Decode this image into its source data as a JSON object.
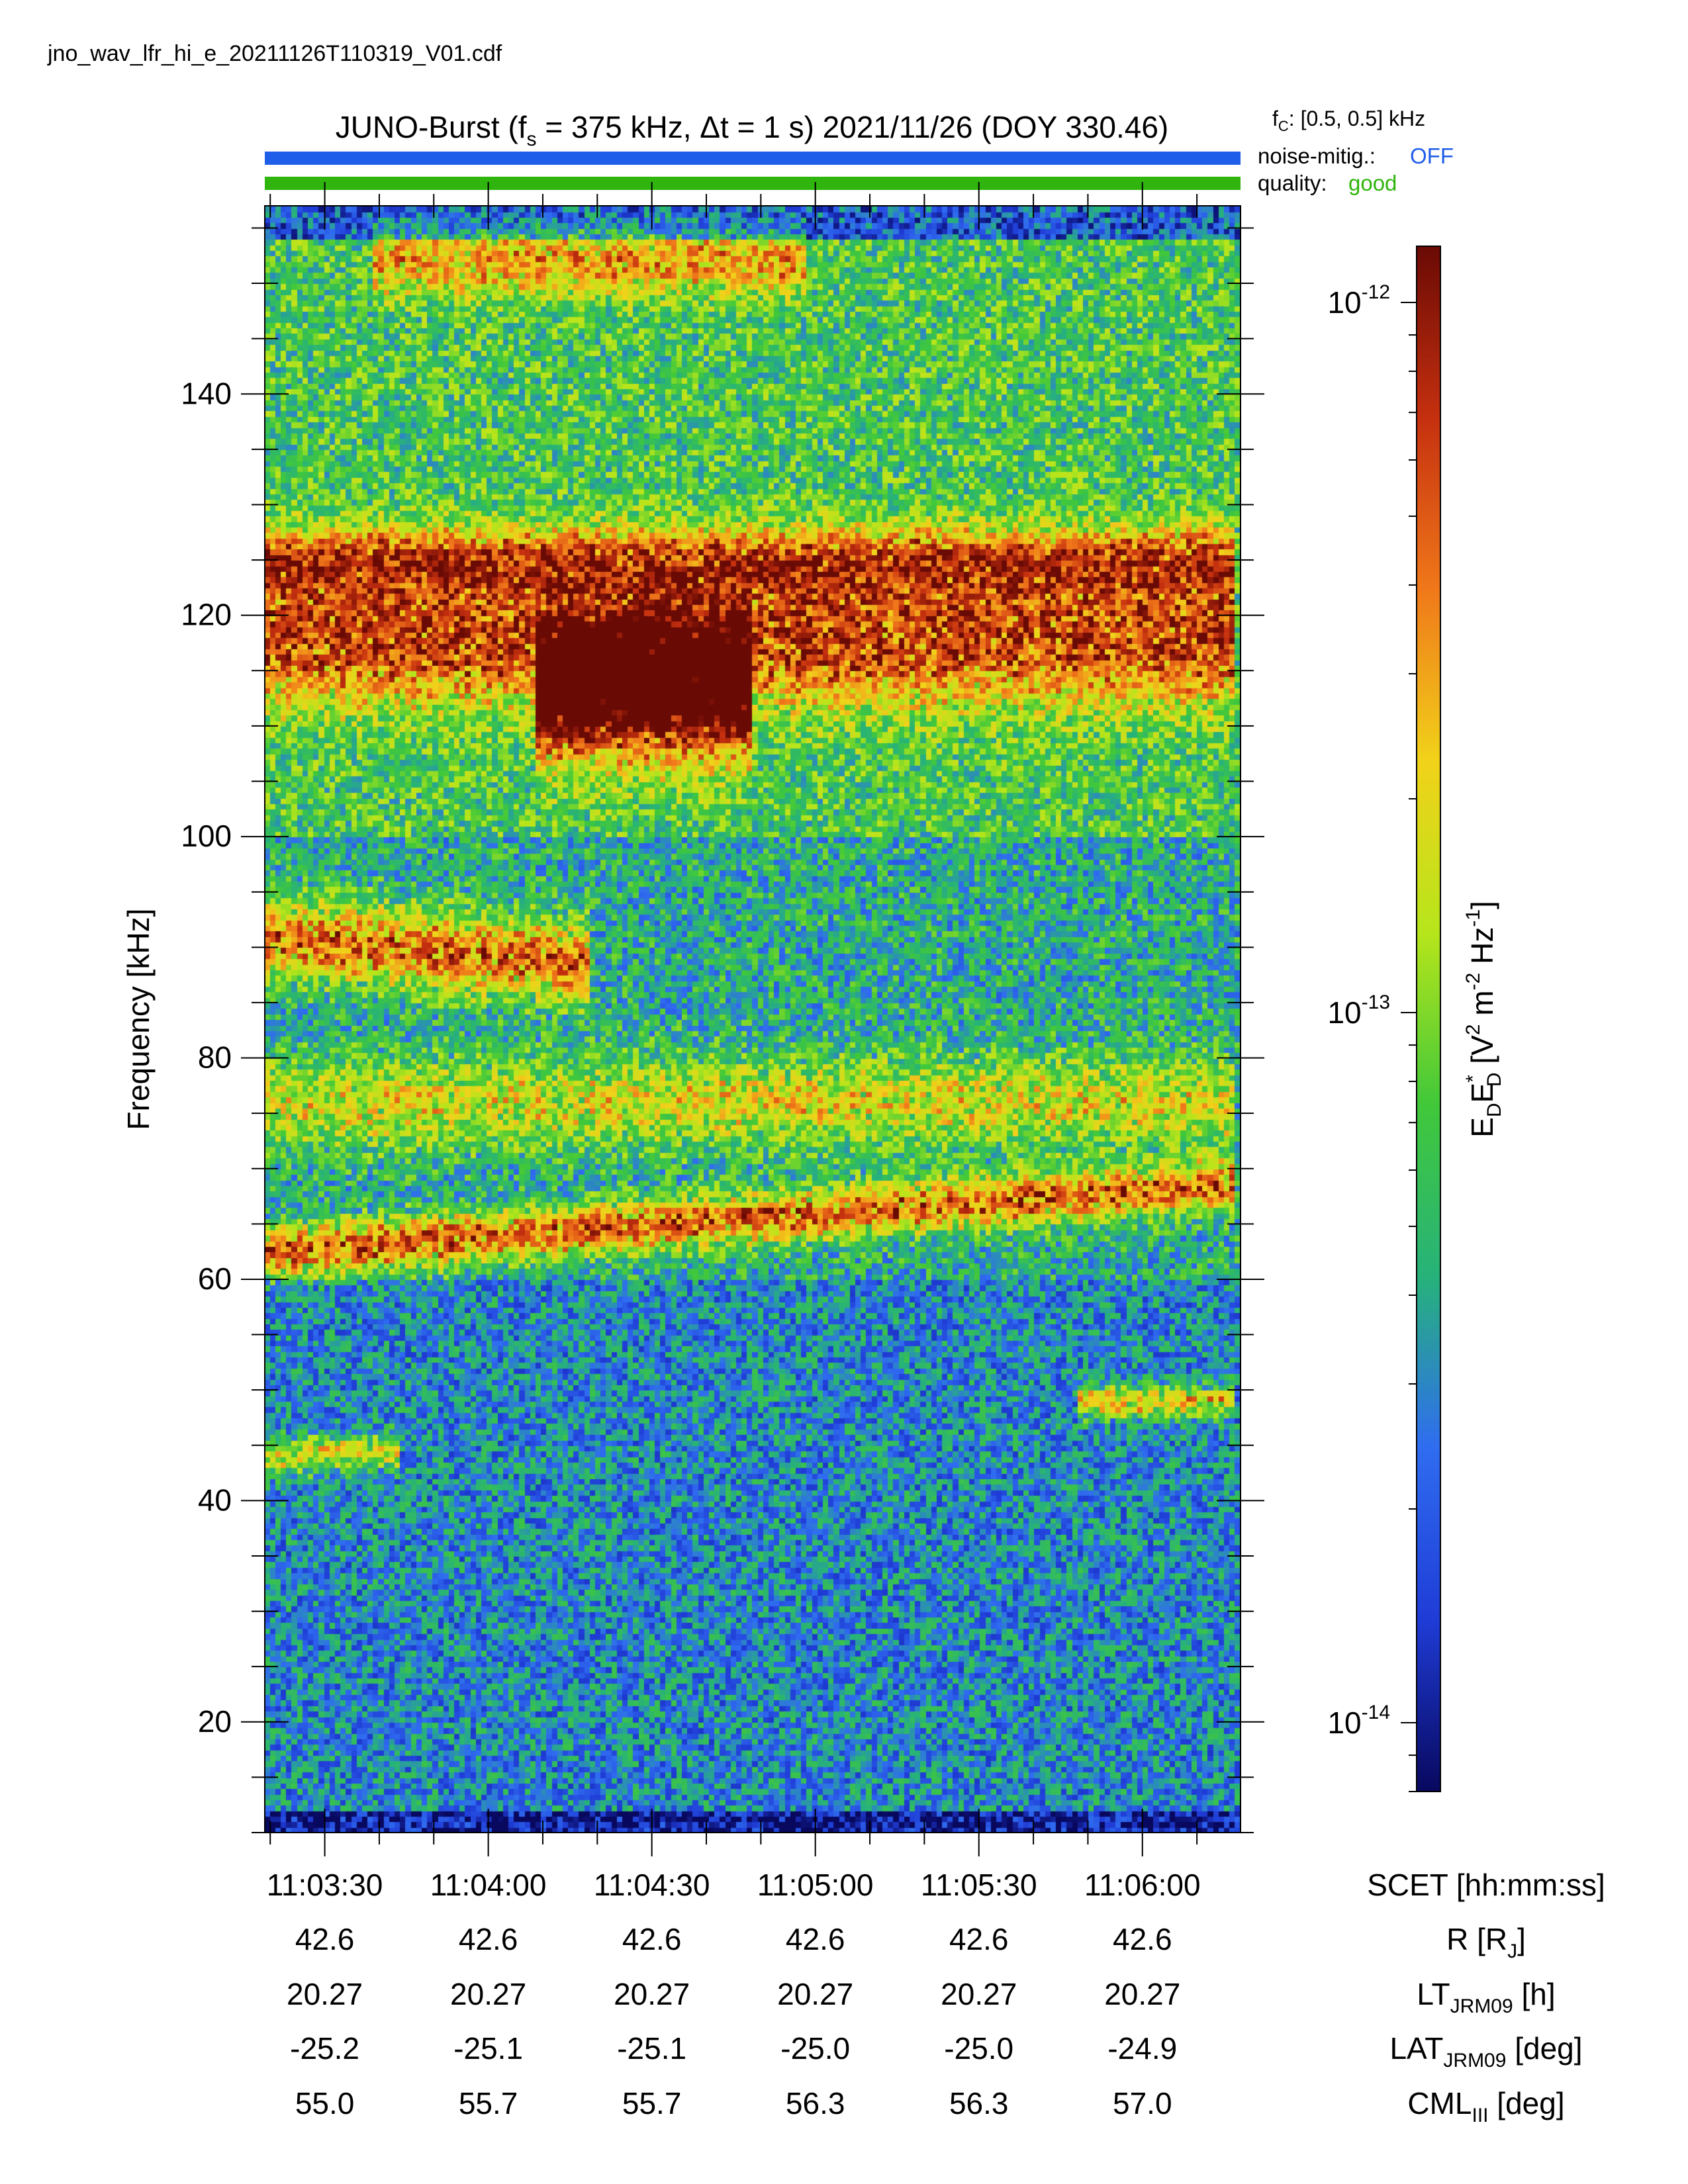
{
  "file_name": "jno_wav_lfr_hi_e_20211126T110319_V01.cdf",
  "header": {
    "title_prefix": "JUNO-Burst (f",
    "title_fs_sub": "s",
    "title_middle": " = 375 kHz, Δt = 1 s)  2021/11/26 (DOY 330.46)",
    "fc_label": "f",
    "fc_sub": "C",
    "fc_value": ": [0.5, 0.5] kHz",
    "noise_label": "noise-mitig.:",
    "noise_value": "OFF",
    "quality_label": "quality:",
    "quality_value": "good",
    "noise_bar_color": "#1f5ee8",
    "quality_bar_color": "#2fb50d",
    "noise_value_color": "#1f5ee8",
    "quality_value_color": "#2fb50d"
  },
  "chart_data": {
    "type": "heatmap",
    "xlabel": "SCET [hh:mm:ss]",
    "ylabel": "Frequency [kHz]",
    "ylim": [
      10,
      157
    ],
    "yticks": [
      20,
      40,
      60,
      80,
      100,
      120,
      140
    ],
    "xlim": [
      "11:03:19",
      "11:06:18"
    ],
    "xticks": [
      "11:03:30",
      "11:04:00",
      "11:04:30",
      "11:05:00",
      "11:05:30",
      "11:06:00"
    ],
    "colorbar": {
      "scale": "log",
      "range": [
        8e-15,
        1.2e-12
      ],
      "tick_labels": [
        {
          "mantissa": "10",
          "exponent": "-12",
          "value": 1e-12
        },
        {
          "mantissa": "10",
          "exponent": "-13",
          "value": 1e-13
        },
        {
          "mantissa": "10",
          "exponent": "-14",
          "value": 1e-14
        }
      ],
      "label_parts": [
        "E",
        "D",
        "E",
        "*",
        "D",
        " [V",
        "2",
        " m",
        "-2",
        " Hz",
        "-1",
        "]"
      ],
      "colormap": [
        "#08085e",
        "#1f3cd6",
        "#2f6cf0",
        "#27b27a",
        "#41c83a",
        "#b6e51b",
        "#f1d21a",
        "#f0781a",
        "#c5300f",
        "#6a0a05"
      ]
    },
    "emission_bands": [
      {
        "t0": 0,
        "t1": 179,
        "f": 62.5,
        "slope_khz_per_s": 0.034,
        "width": 2.2,
        "intensity": 0.62
      },
      {
        "t0": 0,
        "t1": 60,
        "f": 91,
        "slope_khz_per_s": -0.04,
        "width": 3.5,
        "intensity": 0.6
      },
      {
        "t0": 0,
        "t1": 179,
        "f": 118,
        "slope_khz_per_s": 0,
        "width": 6,
        "intensity": 0.6
      },
      {
        "t0": 0,
        "t1": 179,
        "f": 125,
        "slope_khz_per_s": 0,
        "width": 3,
        "intensity": 0.5
      },
      {
        "t0": 50,
        "t1": 90,
        "f": 113,
        "slope_khz_per_s": 0,
        "width": 6,
        "intensity": 0.85
      },
      {
        "t0": 0,
        "t1": 25,
        "f": 44,
        "slope_khz_per_s": 0.02,
        "width": 1.6,
        "intensity": 0.45
      },
      {
        "t0": 150,
        "t1": 179,
        "f": 49,
        "slope_khz_per_s": 0,
        "width": 1.5,
        "intensity": 0.5
      },
      {
        "t0": 20,
        "t1": 100,
        "f": 152,
        "slope_khz_per_s": 0,
        "width": 3,
        "intensity": 0.4
      },
      {
        "t0": 0,
        "t1": 179,
        "f": 76,
        "slope_khz_per_s": 0,
        "width": 4,
        "intensity": 0.35
      }
    ]
  },
  "ephemeris": {
    "rows": [
      {
        "label_main": "SCET [hh:mm:ss]",
        "label_sub": "",
        "label_tail": "",
        "values": [
          "11:03:30",
          "11:04:00",
          "11:04:30",
          "11:05:00",
          "11:05:30",
          "11:06:00"
        ]
      },
      {
        "label_main": "R [R",
        "label_sub": "J",
        "label_tail": "]",
        "values": [
          "42.6",
          "42.6",
          "42.6",
          "42.6",
          "42.6",
          "42.6"
        ]
      },
      {
        "label_main": "LT",
        "label_sub": "JRM09",
        "label_tail": " [h]",
        "values": [
          "20.27",
          "20.27",
          "20.27",
          "20.27",
          "20.27",
          "20.27"
        ]
      },
      {
        "label_main": "LAT",
        "label_sub": "JRM09",
        "label_tail": " [deg]",
        "values": [
          "-25.2",
          "-25.1",
          "-25.1",
          "-25.0",
          "-25.0",
          "-24.9"
        ]
      },
      {
        "label_main": "CML",
        "label_sub": "III",
        "label_tail": " [deg]",
        "values": [
          "55.0",
          "55.7",
          "55.7",
          "56.3",
          "56.3",
          "57.0"
        ]
      }
    ]
  }
}
